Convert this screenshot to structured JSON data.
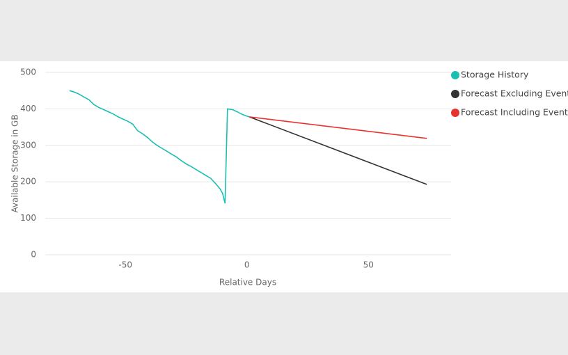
{
  "chart_data": {
    "type": "line",
    "xlabel": "Relative Days",
    "ylabel": "Available Storage in GB",
    "xlim": [
      -83,
      84
    ],
    "ylim": [
      0,
      500
    ],
    "xticks": [
      -50,
      0,
      50
    ],
    "yticks": [
      0,
      100,
      200,
      300,
      400,
      500
    ],
    "grid": true,
    "series": [
      {
        "name": "Storage History",
        "color": "#1abfb2",
        "x": [
          -73,
          -71,
          -69,
          -67,
          -65,
          -63,
          -61,
          -59,
          -57,
          -55,
          -53,
          -51,
          -49,
          -47,
          -45,
          -43,
          -41,
          -39,
          -37,
          -35,
          -33,
          -31,
          -29,
          -27,
          -25,
          -23,
          -21,
          -19,
          -17,
          -15,
          -13,
          -11,
          -10,
          -9,
          -8,
          -6,
          -4,
          -2,
          0,
          1
        ],
        "values": [
          450,
          446,
          440,
          432,
          425,
          412,
          404,
          398,
          392,
          386,
          378,
          372,
          366,
          358,
          340,
          332,
          322,
          310,
          300,
          292,
          284,
          276,
          268,
          258,
          249,
          242,
          234,
          226,
          218,
          210,
          196,
          180,
          168,
          141,
          400,
          398,
          392,
          385,
          380,
          378
        ]
      },
      {
        "name": "Forecast Excluding Event",
        "color": "#333333",
        "x": [
          1,
          74
        ],
        "values": [
          378,
          193
        ]
      },
      {
        "name": "Forecast Including Event",
        "color": "#e8322e",
        "x": [
          1,
          74
        ],
        "values": [
          378,
          319
        ]
      }
    ]
  }
}
